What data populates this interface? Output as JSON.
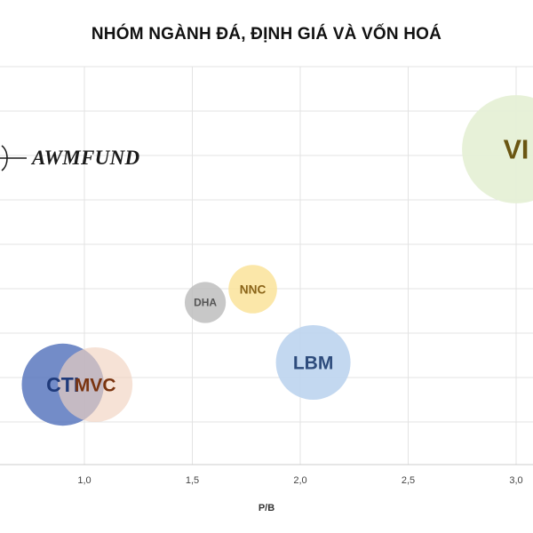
{
  "title": "NHÓM NGÀNH ĐÁ, ĐỊNH GIÁ VÀ VỐN HOÁ",
  "watermark": {
    "text": "AWMFUND",
    "icon": "awmfund-logo-icon"
  },
  "chart_data": {
    "type": "scatter",
    "title": "NHÓM NGÀNH ĐÁ, ĐỊNH GIÁ VÀ VỐN HOÁ",
    "xlabel": "P/B",
    "ylabel": "",
    "x_ticks": [
      "1,0",
      "1,5",
      "2,0",
      "2,5",
      "3,0"
    ],
    "x_tick_values": [
      1.0,
      1.5,
      2.0,
      2.5,
      3.0
    ],
    "grid": true,
    "bubbles": [
      {
        "label": "CTI",
        "x": 0.9,
        "y": 1.8,
        "size": 1.1,
        "color": "#5a78be",
        "text_color": "#1f3a7a",
        "opacity": 0.85
      },
      {
        "label": "MVC",
        "x": 1.05,
        "y": 1.8,
        "size": 1.0,
        "color": "#f1d3c0",
        "text_color": "#7a3410",
        "opacity": 0.65
      },
      {
        "label": "DHA",
        "x": 1.56,
        "y": 3.65,
        "size": 0.55,
        "color": "#bebebe",
        "text_color": "#555555",
        "opacity": 0.85
      },
      {
        "label": "NNC",
        "x": 1.78,
        "y": 3.95,
        "size": 0.65,
        "color": "#fae39a",
        "text_color": "#8a6418",
        "opacity": 0.85
      },
      {
        "label": "LBM",
        "x": 2.06,
        "y": 2.3,
        "size": 1.0,
        "color": "#bdd4ee",
        "text_color": "#2e4c7c",
        "opacity": 0.9
      },
      {
        "label": "VI",
        "x": 3.0,
        "y": 7.1,
        "size": 1.45,
        "color": "#e6f0d6",
        "text_color": "#6a5612",
        "opacity": 0.95
      }
    ]
  }
}
